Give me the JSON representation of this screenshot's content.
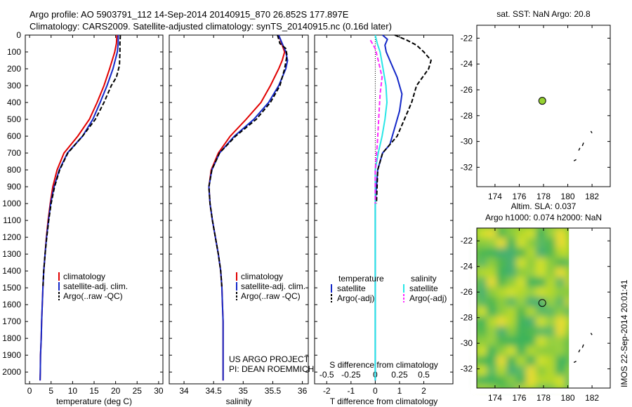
{
  "header": {
    "line1": "Argo profile: AO 5903791_112 14-Sep-2014 20140915_870 26.852S 177.897E",
    "line2": "Climatology: CARS2009. Satellite-adjusted climatology: synTS_20140915.nc (0.16d later)"
  },
  "colors": {
    "climatology": "#e00000",
    "satellite": "#1428c8",
    "argo": "#000000",
    "salinity_satellite": "#28e6e6",
    "salinity_argo": "#ff28ff",
    "marker": "#96d232"
  },
  "depth_ticks": [
    "0",
    "100",
    "200",
    "300",
    "400",
    "500",
    "600",
    "700",
    "800",
    "900",
    "1000",
    "1100",
    "1200",
    "1300",
    "1400",
    "1500",
    "1600",
    "1700",
    "1800",
    "1900",
    "2000"
  ],
  "chart_data": [
    {
      "type": "line",
      "xlabel": "temperature (deg C)",
      "xlim": [
        -1,
        31
      ],
      "ylim": [
        2070,
        0
      ],
      "xticks": [
        "0",
        "5",
        "10",
        "15",
        "20",
        "25",
        "30"
      ],
      "legend": {
        "placement": "lower-left",
        "entries": [
          "climatology",
          "satellite-adj. clim.",
          "Argo(..raw -QC)"
        ]
      },
      "series": [
        {
          "name": "climatology",
          "style": "solid",
          "points": [
            [
              20.3,
              0
            ],
            [
              20.2,
              50
            ],
            [
              19.8,
              100
            ],
            [
              18.6,
              200
            ],
            [
              17.3,
              300
            ],
            [
              15.7,
              400
            ],
            [
              13.9,
              500
            ],
            [
              11.2,
              600
            ],
            [
              8.0,
              700
            ],
            [
              6.4,
              800
            ],
            [
              5.4,
              900
            ],
            [
              4.8,
              1000
            ],
            [
              4.3,
              1100
            ],
            [
              3.9,
              1200
            ],
            [
              3.6,
              1300
            ],
            [
              3.3,
              1400
            ],
            [
              3.1,
              1500
            ],
            [
              2.95,
              1600
            ],
            [
              2.8,
              1700
            ],
            [
              2.7,
              1800
            ],
            [
              2.55,
              1900
            ],
            [
              2.5,
              2000
            ],
            [
              2.45,
              2050
            ]
          ]
        },
        {
          "name": "satellite-adj. clim.",
          "style": "solid",
          "points": [
            [
              20.6,
              0
            ],
            [
              20.6,
              50
            ],
            [
              20.4,
              100
            ],
            [
              19.4,
              200
            ],
            [
              18.0,
              300
            ],
            [
              16.4,
              400
            ],
            [
              14.7,
              500
            ],
            [
              12.3,
              600
            ],
            [
              8.8,
              700
            ],
            [
              6.9,
              800
            ],
            [
              5.7,
              900
            ],
            [
              4.9,
              1000
            ],
            [
              4.4,
              1100
            ],
            [
              3.95,
              1200
            ],
            [
              3.6,
              1300
            ],
            [
              3.3,
              1400
            ],
            [
              3.1,
              1500
            ],
            [
              2.95,
              1600
            ],
            [
              2.8,
              1700
            ],
            [
              2.7,
              1800
            ],
            [
              2.55,
              1900
            ],
            [
              2.5,
              2000
            ],
            [
              2.45,
              2050
            ]
          ]
        },
        {
          "name": "Argo(..raw -QC)",
          "style": "dashed",
          "points": [
            [
              21.1,
              0
            ],
            [
              21.0,
              50
            ],
            [
              21.0,
              100
            ],
            [
              20.9,
              180
            ],
            [
              20.2,
              250
            ],
            [
              19.0,
              300
            ],
            [
              17.3,
              400
            ],
            [
              15.3,
              500
            ],
            [
              12.3,
              600
            ],
            [
              8.9,
              700
            ],
            [
              7.0,
              800
            ],
            [
              5.8,
              900
            ],
            [
              5.0,
              1000
            ],
            [
              4.45,
              1100
            ],
            [
              4.0,
              1200
            ],
            [
              3.6,
              1300
            ],
            [
              3.3,
              1400
            ],
            [
              3.1,
              1500
            ]
          ]
        }
      ]
    },
    {
      "type": "line",
      "xlabel": "salinity",
      "xlim": [
        33.75,
        36.1
      ],
      "ylim": [
        2070,
        0
      ],
      "xticks": [
        "34",
        "34.5",
        "35",
        "35.5",
        "36"
      ],
      "legend": {
        "placement": "lower-right",
        "entries": [
          "climatology",
          "satellite-adj. clim.",
          "Argo(..raw -QC)"
        ]
      },
      "series": [
        {
          "name": "climatology",
          "style": "solid",
          "points": [
            [
              35.6,
              0
            ],
            [
              35.65,
              50
            ],
            [
              35.7,
              100
            ],
            [
              35.66,
              150
            ],
            [
              35.6,
              200
            ],
            [
              35.46,
              300
            ],
            [
              35.3,
              400
            ],
            [
              35.05,
              500
            ],
            [
              34.78,
              600
            ],
            [
              34.58,
              700
            ],
            [
              34.46,
              800
            ],
            [
              34.42,
              900
            ],
            [
              34.44,
              1000
            ],
            [
              34.48,
              1100
            ],
            [
              34.53,
              1200
            ],
            [
              34.58,
              1300
            ],
            [
              34.62,
              1400
            ],
            [
              34.64,
              1500
            ],
            [
              34.65,
              1600
            ],
            [
              34.66,
              1700
            ],
            [
              34.66,
              1800
            ],
            [
              34.66,
              1900
            ],
            [
              34.66,
              2050
            ]
          ]
        },
        {
          "name": "satellite-adj. clim.",
          "style": "solid",
          "points": [
            [
              35.6,
              0
            ],
            [
              35.66,
              50
            ],
            [
              35.72,
              100
            ],
            [
              35.75,
              150
            ],
            [
              35.72,
              200
            ],
            [
              35.6,
              300
            ],
            [
              35.43,
              400
            ],
            [
              35.18,
              500
            ],
            [
              34.85,
              600
            ],
            [
              34.6,
              700
            ],
            [
              34.47,
              800
            ],
            [
              34.42,
              900
            ],
            [
              34.44,
              1000
            ],
            [
              34.48,
              1100
            ],
            [
              34.53,
              1200
            ],
            [
              34.58,
              1300
            ],
            [
              34.62,
              1400
            ],
            [
              34.64,
              1500
            ],
            [
              34.65,
              1600
            ],
            [
              34.66,
              1700
            ],
            [
              34.66,
              1800
            ],
            [
              34.66,
              1900
            ],
            [
              34.66,
              2050
            ]
          ]
        },
        {
          "name": "Argo(..raw -QC)",
          "style": "dashed",
          "points": [
            [
              35.58,
              0
            ],
            [
              35.62,
              50
            ],
            [
              35.72,
              80
            ],
            [
              35.74,
              120
            ],
            [
              35.7,
              200
            ],
            [
              35.62,
              300
            ],
            [
              35.46,
              400
            ],
            [
              35.22,
              500
            ],
            [
              34.87,
              600
            ],
            [
              34.6,
              700
            ],
            [
              34.47,
              800
            ],
            [
              34.42,
              900
            ],
            [
              34.44,
              1000
            ],
            [
              34.48,
              1100
            ],
            [
              34.53,
              1200
            ],
            [
              34.58,
              1300
            ],
            [
              34.62,
              1400
            ],
            [
              34.64,
              1500
            ]
          ]
        }
      ]
    },
    {
      "type": "line",
      "xlabel": "T difference from climatology",
      "x2label": "S difference from climatology",
      "xlim": [
        -2.5,
        3.2
      ],
      "ylim": [
        2070,
        0
      ],
      "xticks": [
        "-2",
        "-1",
        "0",
        "1",
        "2"
      ],
      "x2lim": [
        -0.625,
        0.8
      ],
      "x2ticks": [
        "-0.5",
        "-0.25",
        "0",
        "0.25",
        "0.5"
      ],
      "zero_line": "dotted",
      "legend": {
        "placement": "lower",
        "groups": [
          {
            "title": "temperature",
            "entries": [
              "satellite",
              "Argo(-adj)"
            ]
          },
          {
            "title": "salinity",
            "entries": [
              "satellite",
              "Argo(-adj)"
            ]
          }
        ]
      },
      "series": [
        {
          "name": "temperature satellite",
          "style": "solid",
          "units": "T",
          "points": [
            [
              0.3,
              0
            ],
            [
              0.5,
              25
            ],
            [
              0.4,
              60
            ],
            [
              0.45,
              100
            ],
            [
              0.6,
              150
            ],
            [
              0.9,
              250
            ],
            [
              1.1,
              350
            ],
            [
              1.0,
              450
            ],
            [
              0.8,
              550
            ],
            [
              0.6,
              650
            ],
            [
              0.3,
              700
            ],
            [
              0.1,
              800
            ],
            [
              0.0,
              1000
            ],
            [
              0.0,
              1200
            ],
            [
              0.0,
              1500
            ],
            [
              0.0,
              2050
            ]
          ]
        },
        {
          "name": "temperature Argo(-adj)",
          "style": "dashed",
          "units": "T",
          "points": [
            [
              0.8,
              0
            ],
            [
              1.3,
              30
            ],
            [
              1.7,
              60
            ],
            [
              2.0,
              100
            ],
            [
              2.3,
              150
            ],
            [
              2.2,
              200
            ],
            [
              1.7,
              300
            ],
            [
              1.5,
              400
            ],
            [
              1.2,
              500
            ],
            [
              0.9,
              600
            ],
            [
              0.6,
              650
            ],
            [
              0.3,
              700
            ],
            [
              0.1,
              800
            ],
            [
              0.05,
              1000
            ]
          ]
        },
        {
          "name": "salinity satellite",
          "style": "solid",
          "units": "S",
          "points": [
            [
              0.0,
              0
            ],
            [
              0.02,
              50
            ],
            [
              0.05,
              100
            ],
            [
              0.08,
              200
            ],
            [
              0.11,
              300
            ],
            [
              0.12,
              400
            ],
            [
              0.1,
              500
            ],
            [
              0.07,
              600
            ],
            [
              0.03,
              700
            ],
            [
              0.0,
              800
            ],
            [
              0.0,
              1000
            ],
            [
              0.0,
              1500
            ],
            [
              0.0,
              2050
            ]
          ]
        },
        {
          "name": "salinity Argo(-adj)",
          "style": "dashed",
          "units": "S",
          "points": [
            [
              -0.05,
              30
            ],
            [
              0.0,
              80
            ],
            [
              0.03,
              150
            ],
            [
              0.07,
              250
            ],
            [
              0.05,
              350
            ],
            [
              0.04,
              450
            ],
            [
              0.03,
              550
            ],
            [
              0.02,
              650
            ],
            [
              0.0,
              800
            ],
            [
              0.0,
              1000
            ]
          ]
        }
      ]
    },
    {
      "type": "scatter",
      "title": "sat. SST: NaN Argo: 20.8",
      "xlim": [
        172.5,
        183.5
      ],
      "ylim": [
        -33.5,
        -21
      ],
      "xticks": [
        "174",
        "176",
        "178",
        "180",
        "182"
      ],
      "yticks": [
        "-22",
        "-24",
        "-26",
        "-28",
        "-30",
        "-32"
      ],
      "points": [
        [
          177.897,
          -26.852
        ]
      ],
      "coast": [
        [
          [
            181.9,
            -29.2
          ],
          [
            182.0,
            -29.35
          ]
        ],
        [
          [
            181.3,
            -30.1
          ],
          [
            181.2,
            -30.35
          ]
        ],
        [
          [
            181.0,
            -30.5
          ],
          [
            180.9,
            -30.7
          ]
        ],
        [
          [
            180.7,
            -31.4
          ],
          [
            180.5,
            -31.5
          ]
        ]
      ]
    },
    {
      "type": "heatmap",
      "title": "Altim. SLA: 0.037",
      "subtitle": "Argo h1000: 0.074 h2000: NaN",
      "xlim": [
        172.5,
        183.5
      ],
      "ylim": [
        -33.5,
        -21
      ],
      "data_xrange": [
        172.5,
        180.1
      ],
      "xticks": [
        "174",
        "176",
        "178",
        "180",
        "182"
      ],
      "yticks": [
        "-22",
        "-24",
        "-26",
        "-28",
        "-30",
        "-32"
      ],
      "points": [
        [
          177.897,
          -26.852
        ]
      ],
      "coast": [
        [
          [
            181.9,
            -29.2
          ],
          [
            182.0,
            -29.35
          ]
        ],
        [
          [
            181.3,
            -30.1
          ],
          [
            181.2,
            -30.35
          ]
        ],
        [
          [
            181.0,
            -30.5
          ],
          [
            180.9,
            -30.7
          ]
        ],
        [
          [
            180.7,
            -31.4
          ],
          [
            180.5,
            -31.5
          ]
        ]
      ]
    }
  ],
  "credits": {
    "line1": "US ARGO PROJECT",
    "line2": "PI: DEAN ROEMMICH"
  },
  "watermark": "IMOS 22-Sep-2014 20:01:41"
}
